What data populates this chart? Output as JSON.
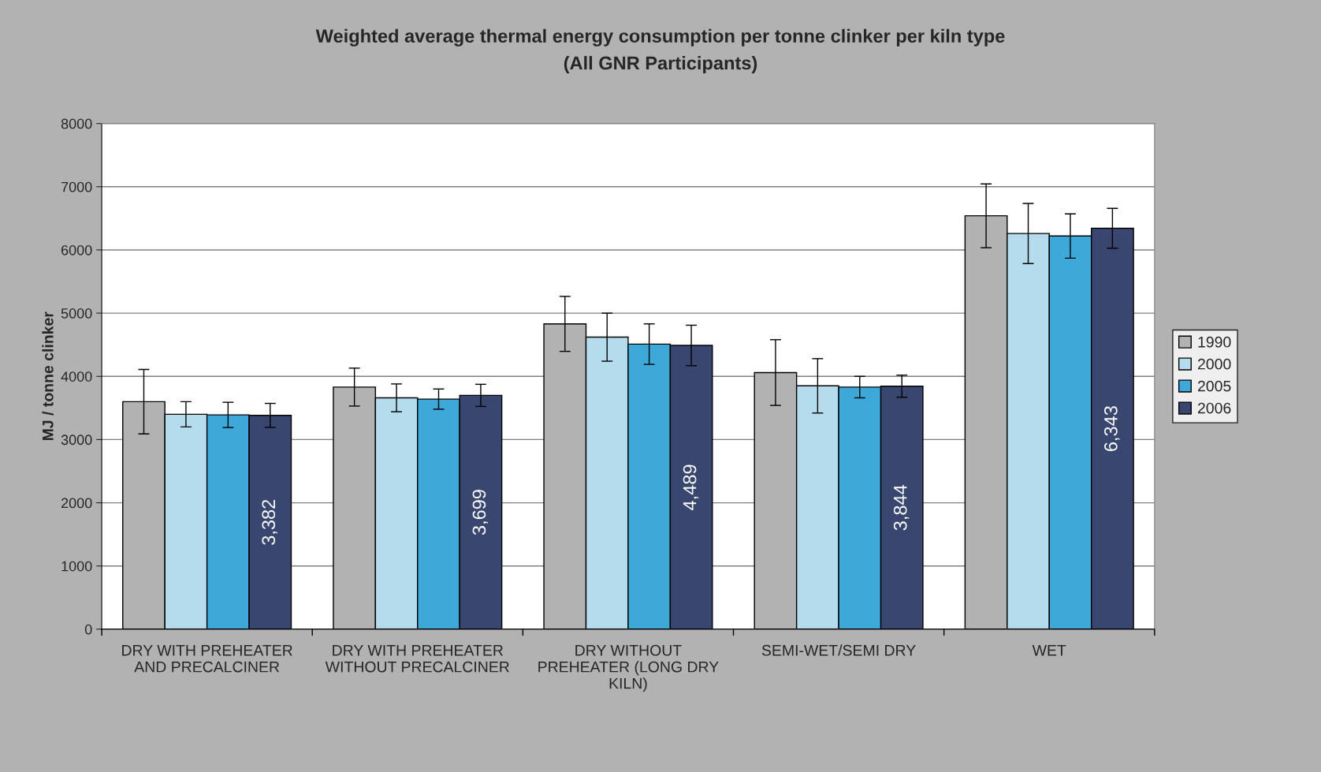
{
  "chart_data": {
    "type": "bar",
    "title": "Weighted average thermal energy consumption per tonne clinker per kiln type",
    "subtitle": "(All GNR Participants)",
    "ylabel": "MJ / tonne clinker",
    "categories": [
      "DRY WITH PREHEATER\nAND PRECALCINER",
      "DRY WITH PREHEATER\nWITHOUT PRECALCINER",
      "DRY WITHOUT\nPREHEATER (LONG DRY\nKILN)",
      "SEMI-WET/SEMI DRY",
      "WET"
    ],
    "series": [
      {
        "name": "1990",
        "color": "#b2b2b2",
        "values": [
          3600,
          3830,
          4830,
          4060,
          6540
        ],
        "errors": [
          510,
          300,
          435,
          520,
          505
        ]
      },
      {
        "name": "2000",
        "color": "#b4dced",
        "values": [
          3400,
          3660,
          4620,
          3850,
          6260
        ],
        "errors": [
          200,
          220,
          380,
          430,
          475
        ]
      },
      {
        "name": "2005",
        "color": "#3ea8d8",
        "values": [
          3390,
          3640,
          4510,
          3830,
          6220
        ],
        "errors": [
          200,
          160,
          320,
          170,
          350
        ]
      },
      {
        "name": "2006",
        "color": "#384670",
        "values": [
          3382,
          3699,
          4489,
          3844,
          6343
        ],
        "errors": [
          190,
          175,
          320,
          175,
          315
        ],
        "value_labels": [
          "3,382",
          "3,699",
          "4,489",
          "3,844",
          "6,343"
        ]
      }
    ],
    "ylim": [
      0,
      8000
    ],
    "yticks": [
      0,
      1000,
      2000,
      3000,
      4000,
      5000,
      6000,
      7000,
      8000
    ],
    "grid": "y",
    "legend": "right"
  }
}
